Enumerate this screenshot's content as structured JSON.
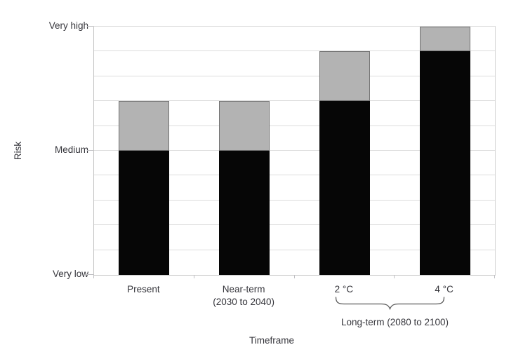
{
  "chart_data": {
    "type": "bar",
    "stacked": true,
    "title": "",
    "xlabel": "Timeframe",
    "ylabel": "Risk",
    "categories": [
      "Present",
      "Near-term\n(2030 to 2040)",
      "2 °C",
      "4 °C"
    ],
    "series": [
      {
        "name": "black",
        "color": "#060606",
        "border": "#060606",
        "values": [
          5,
          5,
          7,
          9
        ]
      },
      {
        "name": "grey",
        "color": "#b3b3b3",
        "border": "#737373",
        "values": [
          2,
          2,
          2,
          1
        ]
      }
    ],
    "stack_totals": [
      7,
      7,
      9,
      10
    ],
    "ylim": [
      0,
      10
    ],
    "y_gridline_step": 1,
    "grid": "horizontal",
    "legend_position": "none",
    "y_ticks": [
      {
        "value": 10,
        "label": "Very high"
      },
      {
        "value": 5,
        "label": "Medium"
      },
      {
        "value": 0,
        "label": "Very low"
      }
    ],
    "x_group_annotation": {
      "label": "Long-term (2080 to 2100)",
      "from_category": "2 °C",
      "to_category": "4 °C"
    },
    "colors": {
      "text": "#35353b",
      "gridline": "#dcdcdc",
      "axis": "#c4c4c4",
      "brace": "#5a5a5a"
    }
  }
}
